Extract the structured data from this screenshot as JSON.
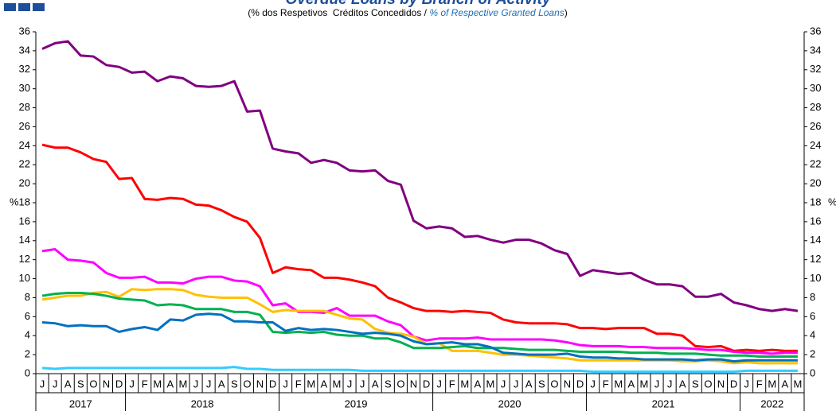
{
  "chart_data": {
    "type": "line",
    "title": "Overdue Loans by Branch of Activity",
    "subtitle": [
      "(% dos Respetivos  Créditos Concedidos / ",
      "% of Respective Granted Loans",
      ")"
    ],
    "ylabel": "%",
    "ylim": [
      0,
      36
    ],
    "yticks": [
      0,
      2,
      4,
      6,
      8,
      10,
      12,
      14,
      16,
      18,
      20,
      22,
      24,
      26,
      28,
      30,
      32,
      34,
      36
    ],
    "categories": [
      "J",
      "J",
      "A",
      "S",
      "O",
      "N",
      "D",
      "J",
      "F",
      "M",
      "A",
      "M",
      "J",
      "J",
      "A",
      "S",
      "O",
      "N",
      "D",
      "J",
      "F",
      "M",
      "A",
      "M",
      "J",
      "J",
      "A",
      "S",
      "O",
      "N",
      "D",
      "J",
      "F",
      "M",
      "A",
      "M",
      "J",
      "J",
      "A",
      "S",
      "O",
      "N",
      "D",
      "J",
      "F",
      "M",
      "A",
      "M",
      "J",
      "J",
      "A",
      "S",
      "O",
      "N",
      "D",
      "J",
      "F",
      "M",
      "A",
      "M"
    ],
    "x_groups": [
      {
        "label": "2017",
        "count": 7
      },
      {
        "label": "2018",
        "count": 12
      },
      {
        "label": "2019",
        "count": 12
      },
      {
        "label": "2020",
        "count": 12
      },
      {
        "label": "2021",
        "count": 12
      },
      {
        "label": "2022",
        "count": 5
      }
    ],
    "series": [
      {
        "color": "#800080",
        "values": [
          34.2,
          34.8,
          35.0,
          33.5,
          33.4,
          32.5,
          32.3,
          31.7,
          31.8,
          30.8,
          31.3,
          31.1,
          30.3,
          30.2,
          30.3,
          30.8,
          27.6,
          27.7,
          23.7,
          23.4,
          23.2,
          22.2,
          22.5,
          22.2,
          21.4,
          21.3,
          21.4,
          20.3,
          19.9,
          16.1,
          15.3,
          15.5,
          15.3,
          14.4,
          14.5,
          14.1,
          13.8,
          14.1,
          14.1,
          13.7,
          13.0,
          12.6,
          10.3,
          10.9,
          10.7,
          10.5,
          10.6,
          9.9,
          9.4,
          9.4,
          9.2,
          8.1,
          8.1,
          8.4,
          7.5,
          7.2,
          6.8,
          6.6,
          6.8,
          6.6
        ]
      },
      {
        "color": "#ff0000",
        "values": [
          24.1,
          23.8,
          23.8,
          23.3,
          22.6,
          22.3,
          20.5,
          20.6,
          18.4,
          18.3,
          18.5,
          18.4,
          17.8,
          17.7,
          17.2,
          16.5,
          16.0,
          14.3,
          10.6,
          11.2,
          11.0,
          10.9,
          10.1,
          10.1,
          9.9,
          9.6,
          9.2,
          8.0,
          7.5,
          6.9,
          6.6,
          6.6,
          6.5,
          6.6,
          6.5,
          6.4,
          5.7,
          5.4,
          5.3,
          5.3,
          5.3,
          5.2,
          4.8,
          4.8,
          4.7,
          4.8,
          4.8,
          4.8,
          4.2,
          4.2,
          4.0,
          2.9,
          2.8,
          2.9,
          2.4,
          2.5,
          2.4,
          2.5,
          2.4,
          2.4
        ]
      },
      {
        "color": "#ff00ff",
        "values": [
          12.9,
          13.1,
          12.0,
          11.9,
          11.7,
          10.6,
          10.1,
          10.1,
          10.2,
          9.6,
          9.6,
          9.5,
          10.0,
          10.2,
          10.2,
          9.8,
          9.7,
          9.2,
          7.2,
          7.4,
          6.5,
          6.5,
          6.4,
          6.9,
          6.1,
          6.1,
          6.1,
          5.5,
          5.1,
          3.9,
          3.5,
          3.7,
          3.7,
          3.7,
          3.8,
          3.6,
          3.6,
          3.6,
          3.6,
          3.6,
          3.5,
          3.3,
          3.0,
          2.9,
          2.9,
          2.9,
          2.8,
          2.8,
          2.7,
          2.7,
          2.7,
          2.6,
          2.5,
          2.5,
          2.3,
          2.2,
          2.2,
          2.1,
          2.2,
          2.2
        ]
      },
      {
        "color": "#ffc000",
        "values": [
          7.8,
          8.0,
          8.2,
          8.2,
          8.5,
          8.6,
          8.1,
          8.9,
          8.8,
          8.9,
          8.9,
          8.8,
          8.3,
          8.1,
          8.0,
          8.0,
          8.0,
          7.3,
          6.5,
          6.7,
          6.6,
          6.6,
          6.6,
          6.2,
          5.8,
          5.7,
          4.7,
          4.3,
          4.2,
          3.9,
          3.1,
          3.2,
          2.4,
          2.4,
          2.4,
          2.2,
          2.0,
          2.0,
          1.9,
          1.8,
          1.7,
          1.6,
          1.4,
          1.4,
          1.4,
          1.4,
          1.4,
          1.4,
          1.4,
          1.4,
          1.3,
          1.3,
          1.4,
          1.3,
          1.1,
          1.2,
          1.1,
          1.1,
          1.1,
          1.1
        ]
      },
      {
        "color": "#00b050",
        "values": [
          8.2,
          8.4,
          8.5,
          8.5,
          8.4,
          8.2,
          7.9,
          7.8,
          7.7,
          7.2,
          7.3,
          7.2,
          6.8,
          6.8,
          6.8,
          6.5,
          6.5,
          6.2,
          4.4,
          4.3,
          4.4,
          4.3,
          4.4,
          4.1,
          4.0,
          4.0,
          3.7,
          3.7,
          3.3,
          2.7,
          2.7,
          2.7,
          2.8,
          2.9,
          2.7,
          2.7,
          2.7,
          2.6,
          2.5,
          2.5,
          2.5,
          2.4,
          2.3,
          2.3,
          2.3,
          2.3,
          2.2,
          2.2,
          2.2,
          2.1,
          2.1,
          2.1,
          2.0,
          1.9,
          1.9,
          1.9,
          1.8,
          1.8,
          1.8,
          1.8
        ]
      },
      {
        "color": "#0070c0",
        "values": [
          5.4,
          5.3,
          5.0,
          5.1,
          5.0,
          5.0,
          4.4,
          4.7,
          4.9,
          4.6,
          5.7,
          5.6,
          6.2,
          6.3,
          6.2,
          5.5,
          5.5,
          5.4,
          5.4,
          4.5,
          4.8,
          4.6,
          4.7,
          4.6,
          4.4,
          4.2,
          4.3,
          4.2,
          4.0,
          3.4,
          3.1,
          3.2,
          3.3,
          3.1,
          3.1,
          2.8,
          2.2,
          2.1,
          2.0,
          2.0,
          2.0,
          2.1,
          1.8,
          1.7,
          1.7,
          1.6,
          1.6,
          1.5,
          1.5,
          1.5,
          1.5,
          1.4,
          1.5,
          1.5,
          1.3,
          1.4,
          1.4,
          1.4,
          1.4,
          1.4
        ]
      },
      {
        "color": "#33ccff",
        "values": [
          0.6,
          0.5,
          0.6,
          0.6,
          0.6,
          0.6,
          0.6,
          0.6,
          0.6,
          0.6,
          0.6,
          0.6,
          0.6,
          0.6,
          0.6,
          0.7,
          0.5,
          0.5,
          0.4,
          0.4,
          0.4,
          0.4,
          0.4,
          0.4,
          0.4,
          0.3,
          0.3,
          0.3,
          0.3,
          0.3,
          0.3,
          0.3,
          0.3,
          0.3,
          0.3,
          0.3,
          0.3,
          0.3,
          0.3,
          0.3,
          0.3,
          0.3,
          0.3,
          0.2,
          0.2,
          0.2,
          0.2,
          0.2,
          0.2,
          0.2,
          0.2,
          0.2,
          0.2,
          0.2,
          0.2,
          0.3,
          0.3,
          0.3,
          0.3,
          0.3
        ]
      }
    ]
  }
}
